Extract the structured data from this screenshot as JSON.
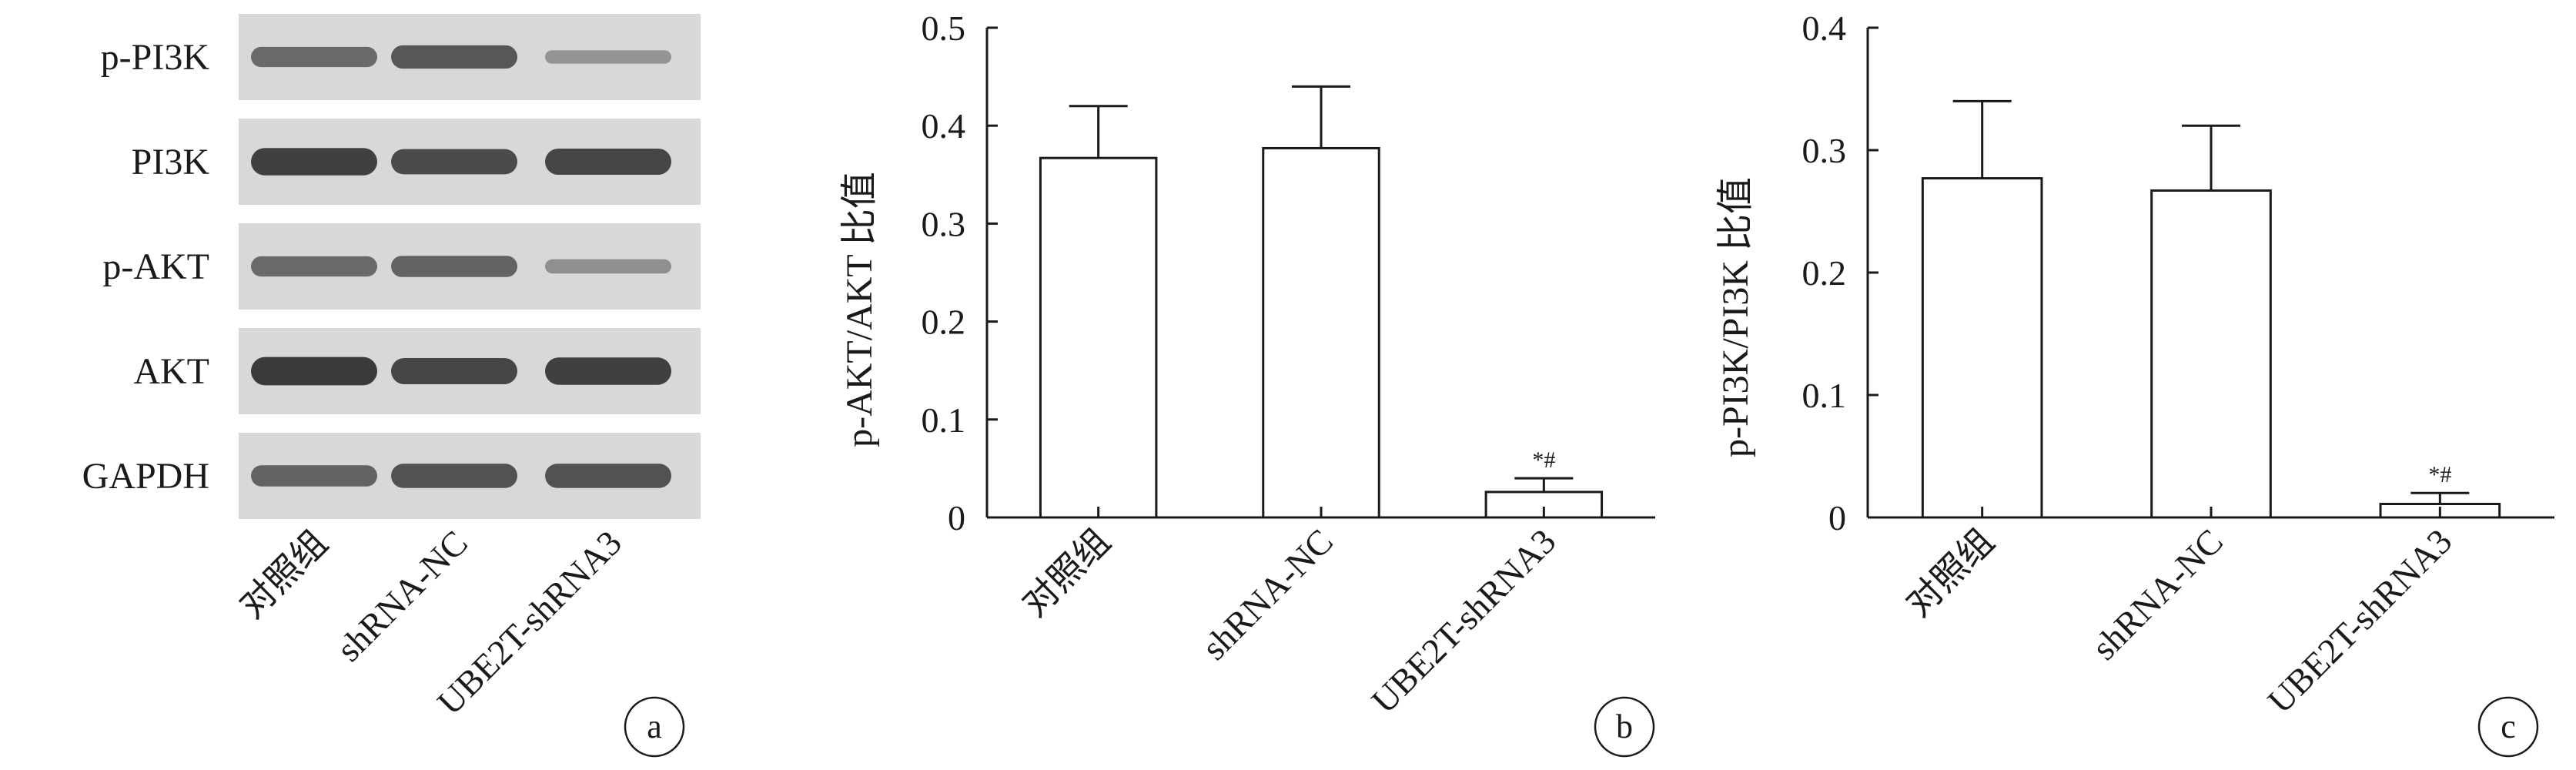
{
  "blot": {
    "rows": [
      "p-PI3K",
      "PI3K",
      "p-AKT",
      "AKT",
      "GAPDH"
    ],
    "lanes": [
      "对照组",
      "shRNA-NC",
      "UBE2T-shRNA3"
    ],
    "intensity": [
      [
        0.55,
        0.7,
        0.2
      ],
      [
        0.9,
        0.8,
        0.85
      ],
      [
        0.55,
        0.6,
        0.25
      ],
      [
        0.95,
        0.85,
        0.9
      ],
      [
        0.6,
        0.75,
        0.75
      ]
    ],
    "panel_label": "a"
  },
  "chart_data": [
    {
      "type": "bar",
      "categories": [
        "对照组",
        "shRNA-NC",
        "UBE2T-shRNA3"
      ],
      "values": [
        0.367,
        0.377,
        0.026
      ],
      "errors": [
        0.053,
        0.063,
        0.014
      ],
      "annotations": [
        "",
        "",
        "*#"
      ],
      "title": "",
      "xlabel": "",
      "ylabel": "p-AKT/AKT 比值",
      "ylim": [
        0,
        0.5
      ],
      "yticks": [
        "0",
        "0.1",
        "0.2",
        "0.3",
        "0.4",
        "0.5"
      ],
      "grid": false,
      "panel_label": "b"
    },
    {
      "type": "bar",
      "categories": [
        "对照组",
        "shRNA-NC",
        "UBE2T-shRNA3"
      ],
      "values": [
        0.277,
        0.267,
        0.011
      ],
      "errors": [
        0.063,
        0.053,
        0.009
      ],
      "annotations": [
        "",
        "",
        "*#"
      ],
      "title": "",
      "xlabel": "",
      "ylabel": "p-PI3K/PI3K 比值",
      "ylim": [
        0,
        0.4
      ],
      "yticks": [
        "0",
        "0.1",
        "0.2",
        "0.3",
        "0.4"
      ],
      "grid": false,
      "panel_label": "c"
    }
  ]
}
